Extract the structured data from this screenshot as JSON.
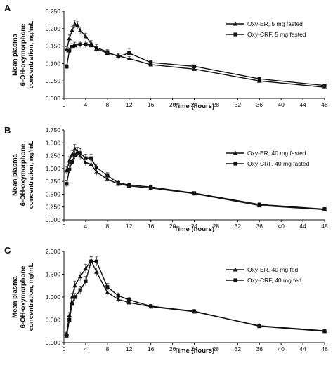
{
  "colors": {
    "ink": "#111111",
    "errorbar": "#444444",
    "background": "#ffffff"
  },
  "chart_data": [
    {
      "panel": "A",
      "type": "line",
      "xlabel": "Time (hours)",
      "ylabel": "Mean plasma 6-OH-oxymorphone concentration, ng/mL",
      "xlim": [
        0,
        48
      ],
      "ylim": [
        0,
        0.25
      ],
      "xticks": [
        "0",
        "4",
        "8",
        "12",
        "16",
        "20",
        "24",
        "28",
        "32",
        "36",
        "40",
        "44",
        "48"
      ],
      "yticks": [
        "0.000",
        "0.050",
        "0.100",
        "0.150",
        "0.200",
        "0.250"
      ],
      "legend_position": "top-right",
      "grid": false,
      "series": [
        {
          "name": "Oxy-ER, 5 mg fasted",
          "marker": "triangle",
          "x": [
            0.5,
            1,
            1.5,
            2,
            2.5,
            3,
            4,
            5,
            6,
            8,
            10,
            12,
            16,
            24,
            36,
            48
          ],
          "y": [
            0.14,
            0.172,
            0.195,
            0.213,
            0.21,
            0.195,
            0.178,
            0.158,
            0.142,
            0.13,
            0.122,
            0.114,
            0.097,
            0.084,
            0.05,
            0.032
          ],
          "err": [
            0.008,
            0.01,
            0.011,
            0.011,
            0.01,
            0.01,
            0.009,
            0.008,
            0.007,
            0.007,
            0.006,
            0.006,
            0.005,
            0.004,
            0.003,
            0.003
          ]
        },
        {
          "name": "Oxy-CRF, 5 mg fasted",
          "marker": "square",
          "x": [
            0.5,
            1,
            1.5,
            2,
            3,
            4,
            5,
            6,
            8,
            10,
            12,
            16,
            24,
            36,
            48
          ],
          "y": [
            0.091,
            0.137,
            0.148,
            0.152,
            0.155,
            0.155,
            0.152,
            0.146,
            0.133,
            0.12,
            0.13,
            0.103,
            0.092,
            0.056,
            0.037
          ],
          "err": [
            0.006,
            0.008,
            0.009,
            0.009,
            0.009,
            0.009,
            0.008,
            0.008,
            0.007,
            0.006,
            0.013,
            0.005,
            0.004,
            0.003,
            0.003
          ]
        }
      ]
    },
    {
      "panel": "B",
      "type": "line",
      "xlabel": "Time (hours)",
      "ylabel": "Mean plasma 6-OH-oxymorphone concentration, ng/mL",
      "xlim": [
        0,
        48
      ],
      "ylim": [
        0,
        1.75
      ],
      "xticks": [
        "0",
        "4",
        "8",
        "12",
        "16",
        "20",
        "24",
        "28",
        "32",
        "36",
        "40",
        "44",
        "48"
      ],
      "yticks": [
        "0.000",
        "0.250",
        "0.500",
        "0.750",
        "1.000",
        "1.250",
        "1.500",
        "1.750"
      ],
      "legend_position": "right",
      "grid": false,
      "series": [
        {
          "name": "Oxy-ER, 40 mg fasted",
          "marker": "triangle",
          "x": [
            0.5,
            1,
            1.5,
            2,
            2.5,
            3,
            4,
            5,
            6,
            8,
            10,
            12,
            16,
            24,
            36,
            48
          ],
          "y": [
            0.96,
            1.15,
            1.27,
            1.38,
            1.32,
            1.25,
            1.12,
            1.08,
            0.93,
            0.79,
            0.7,
            0.66,
            0.62,
            0.51,
            0.28,
            0.2
          ],
          "err": [
            0.07,
            0.08,
            0.08,
            0.09,
            0.08,
            0.08,
            0.07,
            0.07,
            0.06,
            0.05,
            0.04,
            0.04,
            0.04,
            0.03,
            0.02,
            0.02
          ]
        },
        {
          "name": "Oxy-CRF, 40 mg fasted",
          "marker": "square",
          "x": [
            0.5,
            1,
            1.5,
            2,
            3,
            4,
            5,
            6,
            8,
            10,
            12,
            16,
            24,
            36,
            48
          ],
          "y": [
            0.7,
            0.98,
            1.13,
            1.26,
            1.3,
            1.2,
            1.2,
            1.02,
            0.86,
            0.72,
            0.68,
            0.64,
            0.52,
            0.3,
            0.21
          ],
          "err": [
            0.06,
            0.08,
            0.09,
            0.09,
            0.09,
            0.08,
            0.08,
            0.07,
            0.06,
            0.05,
            0.04,
            0.04,
            0.03,
            0.02,
            0.02
          ]
        }
      ]
    },
    {
      "panel": "C",
      "type": "line",
      "xlabel": "Time (hours)",
      "ylabel": "Mean plasma 6-OH-oxymorphone concentration, ng/mL",
      "xlim": [
        0,
        48
      ],
      "ylim": [
        0,
        2.0
      ],
      "xticks": [
        "0",
        "4",
        "8",
        "12",
        "16",
        "20",
        "24",
        "28",
        "32",
        "36",
        "40",
        "44",
        "48"
      ],
      "yticks": [
        "0.000",
        "0.500",
        "1.000",
        "1.500",
        "2.000"
      ],
      "legend_position": "right",
      "grid": false,
      "series": [
        {
          "name": "Oxy-ER, 40 mg fed",
          "marker": "triangle",
          "x": [
            0.5,
            1,
            1.5,
            2,
            3,
            4,
            5,
            6,
            8,
            10,
            12,
            16,
            24,
            36,
            48
          ],
          "y": [
            0.2,
            0.6,
            1.0,
            1.25,
            1.45,
            1.62,
            1.8,
            1.55,
            1.1,
            0.95,
            0.88,
            0.79,
            0.68,
            0.37,
            0.26
          ],
          "err": [
            0.03,
            0.06,
            0.08,
            0.1,
            0.1,
            0.1,
            0.09,
            0.09,
            0.07,
            0.06,
            0.05,
            0.04,
            0.04,
            0.03,
            0.02
          ]
        },
        {
          "name": "Oxy-CRF, 40 mg fed",
          "marker": "square",
          "x": [
            0.5,
            1,
            1.5,
            2,
            3,
            4,
            5,
            6,
            8,
            10,
            12,
            16,
            24,
            36,
            48
          ],
          "y": [
            0.15,
            0.5,
            0.85,
            1.0,
            1.15,
            1.35,
            1.78,
            1.78,
            1.22,
            1.03,
            0.94,
            0.8,
            0.69,
            0.36,
            0.25
          ],
          "err": [
            0.03,
            0.05,
            0.07,
            0.08,
            0.09,
            0.1,
            0.1,
            0.1,
            0.08,
            0.06,
            0.05,
            0.04,
            0.04,
            0.03,
            0.02
          ]
        }
      ]
    }
  ]
}
